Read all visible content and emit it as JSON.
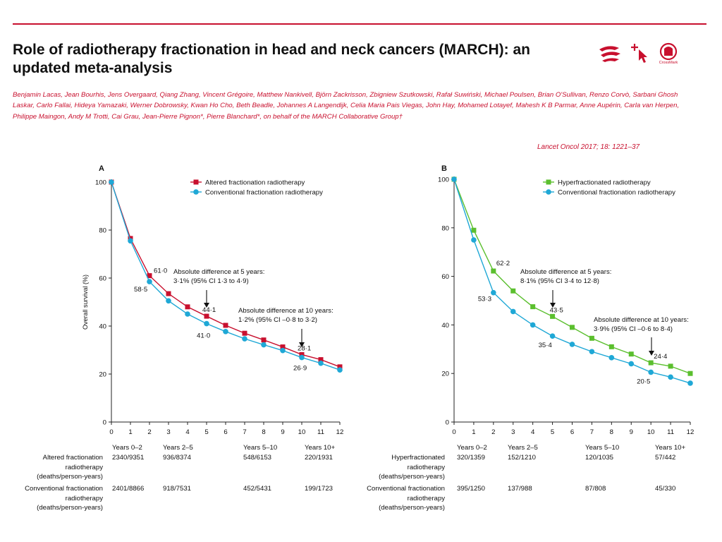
{
  "header": {
    "title": "Role of radiotherapy fractionation in head and neck cancers (MARCH): an updated meta-analysis",
    "authors": "Benjamin Lacas, Jean Bourhis, Jens Overgaard, Qiang Zhang, Vincent Grégoire, Matthew Nankivell, Björn Zackrisson, Zbigniew Szutkowski, Rafał Suwiński, Michael Poulsen, Brian O'Sullivan, Renzo Corvò, Sarbani Ghosh Laskar, Carlo Fallai, Hideya Yamazaki, Werner Dobrowsky, Kwan Ho Cho, Beth Beadle, Johannes A Langendijk, Celia Maria Pais Viegas, John Hay, Mohamed Lotayef, Mahesh K B Parmar, Anne Aupérin, Carla van Herpen, Philippe Maingon, Andy M Trotti, Cai Grau, Jean-Pierre Pignon*, Pierre Blanchard*, on behalf of the MARCH Collaborative Group†",
    "citation": "Lancet Oncol 2017; 18: 1221–37",
    "crossmark_label": "CrossMark"
  },
  "colors": {
    "accent": "#c8102e",
    "altered": "#c8102e",
    "hyper": "#5bbf2e",
    "conventional": "#1fa8d6"
  },
  "chart_data": [
    {
      "type": "line",
      "panel": "A",
      "xlabel": "",
      "ylabel": "Overall survival (%)",
      "xlim": [
        0,
        12
      ],
      "ylim": [
        0,
        100
      ],
      "xticks": [
        0,
        1,
        2,
        3,
        4,
        5,
        6,
        7,
        8,
        9,
        10,
        11,
        12
      ],
      "yticks": [
        0,
        20,
        40,
        60,
        80,
        100
      ],
      "legend_position": "top-right",
      "x": [
        0,
        1,
        2,
        3,
        4,
        5,
        6,
        7,
        8,
        9,
        10,
        11,
        12
      ],
      "series": [
        {
          "name": "Altered fractionation radiotherapy",
          "marker": "square",
          "color": "#c8102e",
          "values": [
            100,
            76.5,
            61.0,
            53.5,
            48,
            44.1,
            40.3,
            37,
            34.2,
            31.3,
            28.1,
            26,
            23
          ]
        },
        {
          "name": "Conventional fractionation radiotherapy",
          "marker": "circle",
          "color": "#1fa8d6",
          "values": [
            100,
            75.5,
            58.5,
            50.5,
            45,
            41.0,
            37.7,
            34.7,
            32.2,
            29.8,
            26.9,
            24.5,
            21.7
          ]
        }
      ],
      "point_labels": [
        {
          "text": "61·0",
          "x": 2,
          "y": 61.0,
          "series": 0
        },
        {
          "text": "58·5",
          "x": 2,
          "y": 58.5,
          "series": 1
        },
        {
          "text": "44·1",
          "x": 5,
          "y": 44.1,
          "series": 0
        },
        {
          "text": "41·0",
          "x": 5,
          "y": 41.0,
          "series": 1
        },
        {
          "text": "28·1",
          "x": 10,
          "y": 28.1,
          "series": 0
        },
        {
          "text": "26·9",
          "x": 10,
          "y": 26.9,
          "series": 1
        }
      ],
      "annotations": [
        {
          "lines": [
            "Absolute difference at 5 years:",
            "3·1% (95% CI 1·3 to 4·9)"
          ],
          "x": 5
        },
        {
          "lines": [
            "Absolute difference at 10 years:",
            "1·2% (95% CI –0·8 to 3·2)"
          ],
          "x": 10
        }
      ]
    },
    {
      "type": "line",
      "panel": "B",
      "xlabel": "",
      "ylabel": "",
      "xlim": [
        0,
        12
      ],
      "ylim": [
        0,
        100
      ],
      "xticks": [
        0,
        1,
        2,
        3,
        4,
        5,
        6,
        7,
        8,
        9,
        10,
        11,
        12
      ],
      "yticks": [
        0,
        20,
        40,
        60,
        80,
        100
      ],
      "legend_position": "top-right",
      "x": [
        0,
        1,
        2,
        3,
        4,
        5,
        6,
        7,
        8,
        9,
        10,
        11,
        12
      ],
      "series": [
        {
          "name": "Hyperfractionated radiotherapy",
          "marker": "square",
          "color": "#5bbf2e",
          "values": [
            100,
            79,
            62.2,
            54,
            47.5,
            43.5,
            39,
            34.5,
            31,
            28,
            24.4,
            23,
            20
          ]
        },
        {
          "name": "Conventional fractionation radiotherapy",
          "marker": "circle",
          "color": "#1fa8d6",
          "values": [
            100,
            75,
            53.3,
            45.5,
            40,
            35.4,
            32,
            29,
            26.5,
            24,
            20.5,
            18.5,
            16
          ]
        }
      ],
      "point_labels": [
        {
          "text": "62·2",
          "x": 2,
          "y": 62.2,
          "series": 0
        },
        {
          "text": "53·3",
          "x": 2,
          "y": 53.3,
          "series": 1
        },
        {
          "text": "43·5",
          "x": 5,
          "y": 43.5,
          "series": 0
        },
        {
          "text": "35·4",
          "x": 5,
          "y": 35.4,
          "series": 1
        },
        {
          "text": "24·4",
          "x": 10,
          "y": 24.4,
          "series": 0
        },
        {
          "text": "20·5",
          "x": 10,
          "y": 20.5,
          "series": 1
        }
      ],
      "annotations": [
        {
          "lines": [
            "Absolute difference at 5 years:",
            "8·1% (95% CI 3·4 to 12·8)"
          ],
          "x": 5
        },
        {
          "lines": [
            "Absolute difference at 10 years:",
            "3·9% (95% CI –0·6 to 8·4)"
          ],
          "x": 10
        }
      ]
    }
  ],
  "tables": {
    "periods": [
      "Years 0–2",
      "Years 2–5",
      "Years 5–10",
      "Years 10+"
    ],
    "a": {
      "row1_label": [
        "Altered fractionation",
        "radiotherapy",
        "(deaths/person-years)"
      ],
      "row1_values": [
        "2340/9351",
        "936/8374",
        "548/6153",
        "220/1931"
      ],
      "row2_label": [
        "Conventional fractionation",
        "radiotherapy",
        "(deaths/person-years)"
      ],
      "row2_values": [
        "2401/8866",
        "918/7531",
        "452/5431",
        "199/1723"
      ]
    },
    "b": {
      "row1_label": [
        "Hyperfractionated",
        "radiotherapy",
        "(deaths/person-years)"
      ],
      "row1_values": [
        "320/1359",
        "152/1210",
        "120/1035",
        "57/442"
      ],
      "row2_label": [
        "Conventional fractionation",
        "radiotherapy",
        "(deaths/person-years)"
      ],
      "row2_values": [
        "395/1250",
        "137/988",
        "87/808",
        "45/330"
      ]
    }
  }
}
